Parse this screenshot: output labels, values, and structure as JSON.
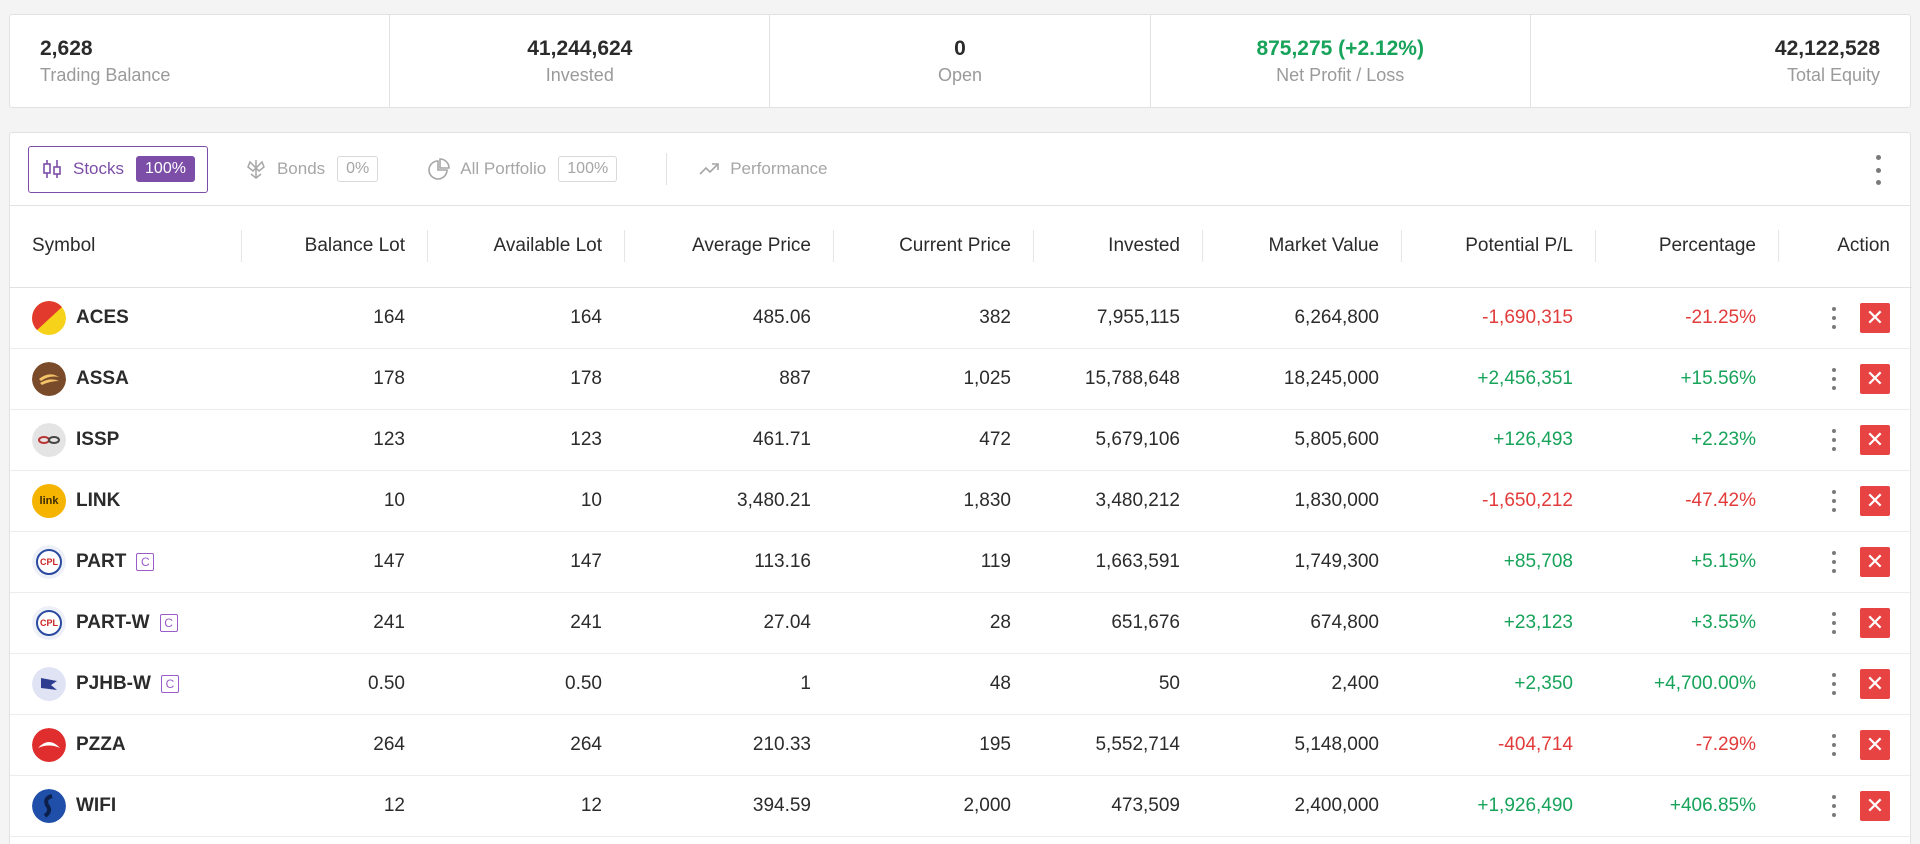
{
  "summary": {
    "trading_balance": {
      "value": "2,628",
      "label": "Trading Balance"
    },
    "invested": {
      "value": "41,244,624",
      "label": "Invested"
    },
    "open": {
      "value": "0",
      "label": "Open"
    },
    "net_profit": {
      "value": "875,275 (+2.12%)",
      "label": "Net Profit / Loss"
    },
    "total_equity": {
      "value": "42,122,528",
      "label": "Total Equity"
    }
  },
  "tabs": [
    {
      "label": "Stocks",
      "pct": "100%",
      "icon": "candlestick-icon"
    },
    {
      "label": "Bonds",
      "pct": "0%",
      "icon": "bonds-icon"
    },
    {
      "label": "All Portfolio",
      "pct": "100%",
      "icon": "pie-chart-icon"
    },
    {
      "label": "Performance",
      "icon": "trend-up-icon"
    }
  ],
  "columns": [
    "Symbol",
    "Balance Lot",
    "Available Lot",
    "Average Price",
    "Current Price",
    "Invested",
    "Market Value",
    "Potential P/L",
    "Percentage",
    "Action"
  ],
  "rows": [
    {
      "symbol": "ACES",
      "badge": "",
      "balance_lot": "164",
      "available_lot": "164",
      "avg_price": "485.06",
      "cur_price": "382",
      "invested": "7,955,115",
      "market_value": "6,264,800",
      "pl": "-1,690,315",
      "pct": "-21.25%",
      "trend": "neg"
    },
    {
      "symbol": "ASSA",
      "badge": "",
      "balance_lot": "178",
      "available_lot": "178",
      "avg_price": "887",
      "cur_price": "1,025",
      "invested": "15,788,648",
      "market_value": "18,245,000",
      "pl": "+2,456,351",
      "pct": "+15.56%",
      "trend": "pos"
    },
    {
      "symbol": "ISSP",
      "badge": "",
      "balance_lot": "123",
      "available_lot": "123",
      "avg_price": "461.71",
      "cur_price": "472",
      "invested": "5,679,106",
      "market_value": "5,805,600",
      "pl": "+126,493",
      "pct": "+2.23%",
      "trend": "pos"
    },
    {
      "symbol": "LINK",
      "badge": "",
      "balance_lot": "10",
      "available_lot": "10",
      "avg_price": "3,480.21",
      "cur_price": "1,830",
      "invested": "3,480,212",
      "market_value": "1,830,000",
      "pl": "-1,650,212",
      "pct": "-47.42%",
      "trend": "neg"
    },
    {
      "symbol": "PART",
      "badge": "C",
      "balance_lot": "147",
      "available_lot": "147",
      "avg_price": "113.16",
      "cur_price": "119",
      "invested": "1,663,591",
      "market_value": "1,749,300",
      "pl": "+85,708",
      "pct": "+5.15%",
      "trend": "pos"
    },
    {
      "symbol": "PART-W",
      "badge": "C",
      "balance_lot": "241",
      "available_lot": "241",
      "avg_price": "27.04",
      "cur_price": "28",
      "invested": "651,676",
      "market_value": "674,800",
      "pl": "+23,123",
      "pct": "+3.55%",
      "trend": "pos"
    },
    {
      "symbol": "PJHB-W",
      "badge": "C",
      "balance_lot": "0.50",
      "available_lot": "0.50",
      "avg_price": "1",
      "cur_price": "48",
      "invested": "50",
      "market_value": "2,400",
      "pl": "+2,350",
      "pct": "+4,700.00%",
      "trend": "pos"
    },
    {
      "symbol": "PZZA",
      "badge": "",
      "balance_lot": "264",
      "available_lot": "264",
      "avg_price": "210.33",
      "cur_price": "195",
      "invested": "5,552,714",
      "market_value": "5,148,000",
      "pl": "-404,714",
      "pct": "-7.29%",
      "trend": "neg"
    },
    {
      "symbol": "WIFI",
      "badge": "",
      "balance_lot": "12",
      "available_lot": "12",
      "avg_price": "394.59",
      "cur_price": "2,000",
      "invested": "473,509",
      "market_value": "2,400,000",
      "pl": "+1,926,490",
      "pct": "+406.85%",
      "trend": "pos"
    }
  ],
  "logo_text": {
    "LINK": "link",
    "PART": "CPL",
    "PART-W": "CPL"
  },
  "colors": {
    "accent": "#7c4ea8",
    "positive": "#18a35a",
    "negative": "#e23b3b",
    "delete": "#e84343"
  }
}
